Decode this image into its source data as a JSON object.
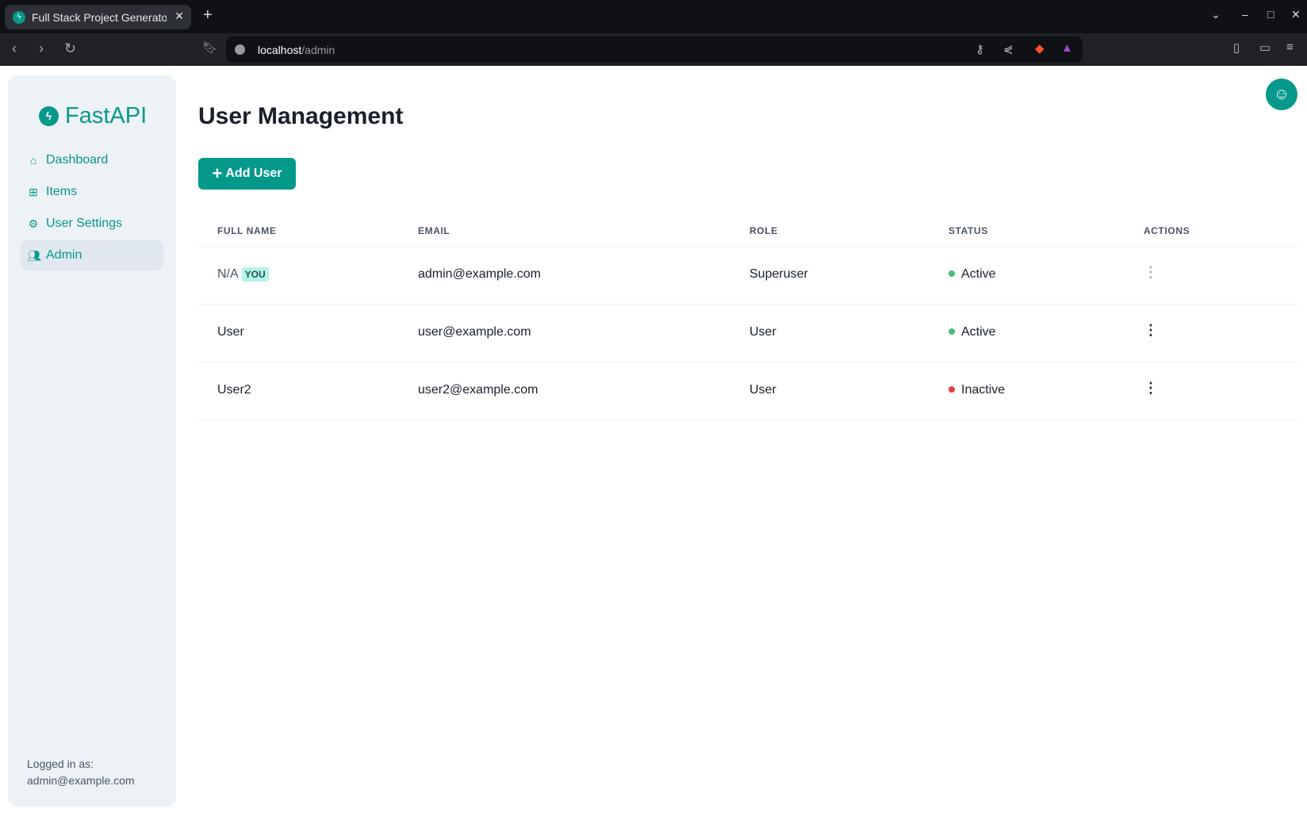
{
  "browser": {
    "tab_title": "Full Stack Project Generator",
    "url_host": "localhost",
    "url_path": "/admin"
  },
  "sidebar": {
    "brand": "FastAPI",
    "items": [
      {
        "label": "Dashboard",
        "icon": "home-icon"
      },
      {
        "label": "Items",
        "icon": "briefcase-icon"
      },
      {
        "label": "User Settings",
        "icon": "gear-icon"
      },
      {
        "label": "Admin",
        "icon": "users-icon",
        "active": true
      }
    ],
    "logged_in_label": "Logged in as:",
    "logged_in_email": "admin@example.com"
  },
  "main": {
    "title": "User Management",
    "add_user_label": "Add User",
    "columns": [
      "FULL NAME",
      "EMAIL",
      "ROLE",
      "STATUS",
      "ACTIONS"
    ],
    "rows": [
      {
        "full_name": "N/A",
        "badge": "YOU",
        "email": "admin@example.com",
        "role": "Superuser",
        "status": "Active",
        "status_color": "#48bb78",
        "actions_disabled": true
      },
      {
        "full_name": "User",
        "email": "user@example.com",
        "role": "User",
        "status": "Active",
        "status_color": "#48bb78"
      },
      {
        "full_name": "User2",
        "email": "user2@example.com",
        "role": "User",
        "status": "Inactive",
        "status_color": "#e53e3e"
      }
    ]
  },
  "colors": {
    "accent": "#05998b"
  }
}
